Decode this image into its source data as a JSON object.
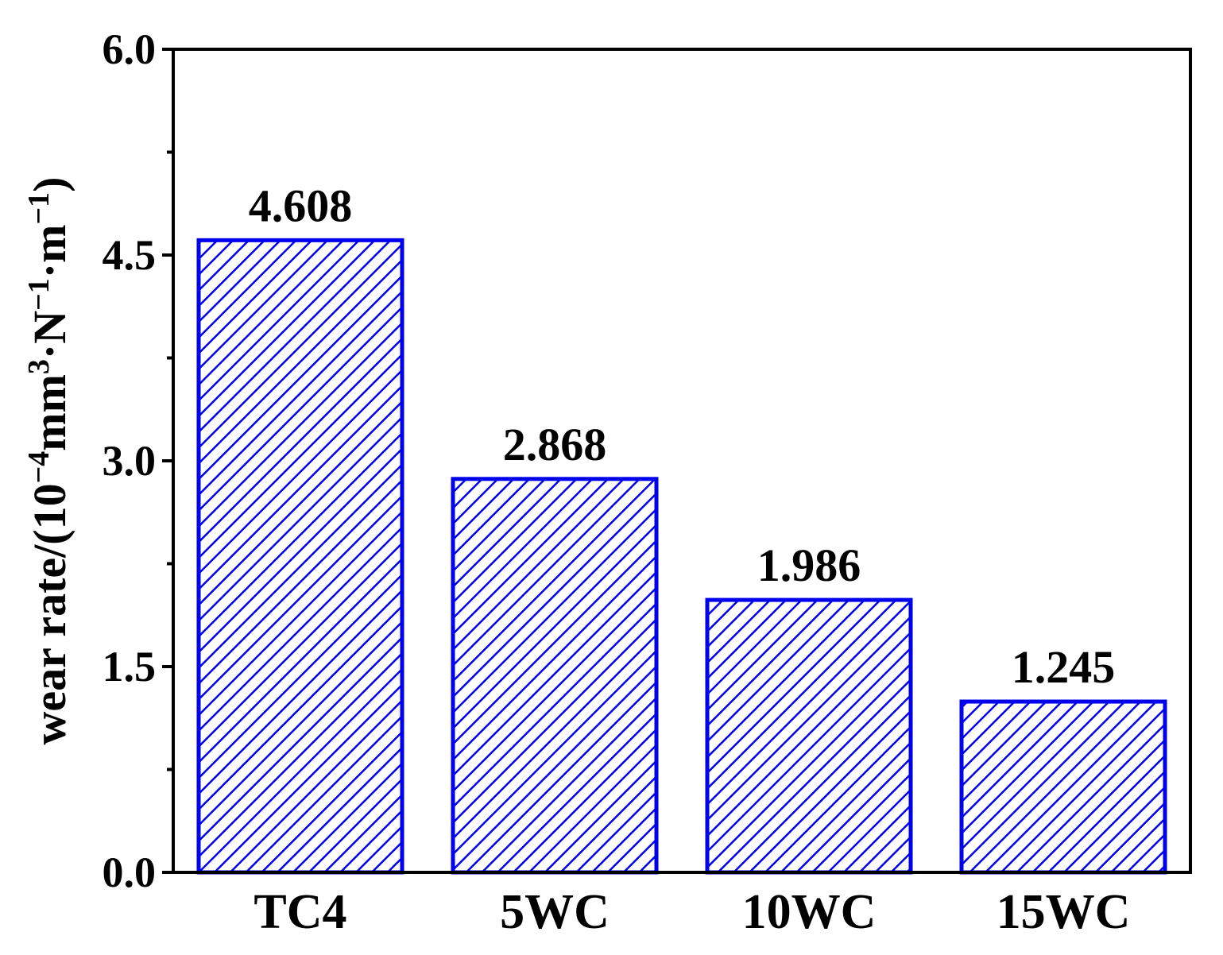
{
  "chart_data": {
    "type": "bar",
    "categories": [
      "TC4",
      "5WC",
      "10WC",
      "15WC"
    ],
    "values": [
      4.608,
      2.868,
      1.986,
      1.245
    ],
    "data_labels": [
      "4.608",
      "2.868",
      "1.986",
      "1.245"
    ],
    "title": "",
    "xlabel": "",
    "ylabel": {
      "prefix": "wear rate/(10",
      "sup1": "−4",
      "mid1": "mm",
      "sup2": "3",
      "mid2": "·N",
      "sup3": "−1",
      "mid3": "·m",
      "sup4": "−1",
      "suffix": ")"
    },
    "ylim": [
      0,
      6.0
    ],
    "yticks": [
      0.0,
      1.5,
      3.0,
      4.5,
      6.0
    ],
    "ytick_labels": [
      "0.0",
      "1.5",
      "3.0",
      "4.5",
      "6.0"
    ],
    "y_minor_ticks": [
      0.75,
      2.25,
      3.75,
      5.25
    ],
    "grid": false,
    "legend": "none",
    "bar_style": "hatched",
    "colors": {
      "bar_edge": "#0000ee",
      "hatch": "#0000ee",
      "bar_fill": "#ffffff",
      "axis": "#000000"
    }
  }
}
